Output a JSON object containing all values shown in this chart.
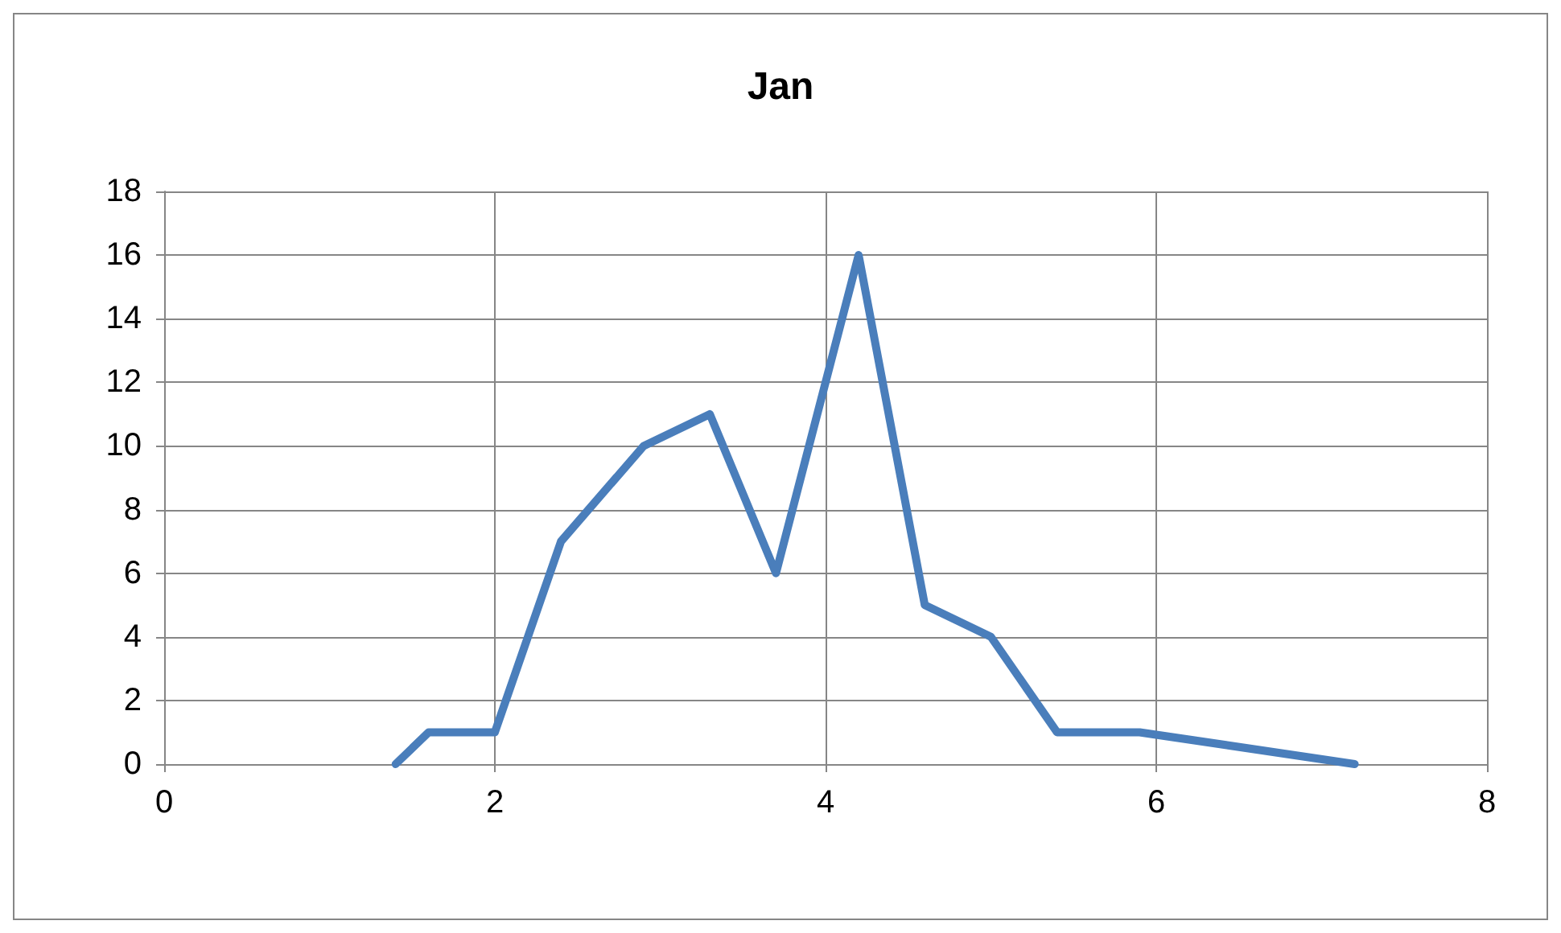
{
  "chart_data": {
    "type": "line",
    "title": "Jan",
    "series": [
      {
        "color": "#4a7ebb",
        "x": [
          1.4,
          1.6,
          2.0,
          2.4,
          2.9,
          3.3,
          3.7,
          4.2,
          4.6,
          5.0,
          5.4,
          5.9,
          7.2
        ],
        "values": [
          0,
          1,
          1,
          7,
          10,
          11,
          6,
          16,
          5,
          4,
          1,
          1,
          0
        ]
      }
    ],
    "xlim": [
      0,
      8
    ],
    "xticks": [
      0,
      2,
      4,
      6,
      8
    ],
    "ylim": [
      0,
      18
    ],
    "yticks": [
      0,
      2,
      4,
      6,
      8,
      10,
      12,
      14,
      16,
      18
    ],
    "grid": true,
    "marker": "none",
    "line_style": "solid"
  }
}
